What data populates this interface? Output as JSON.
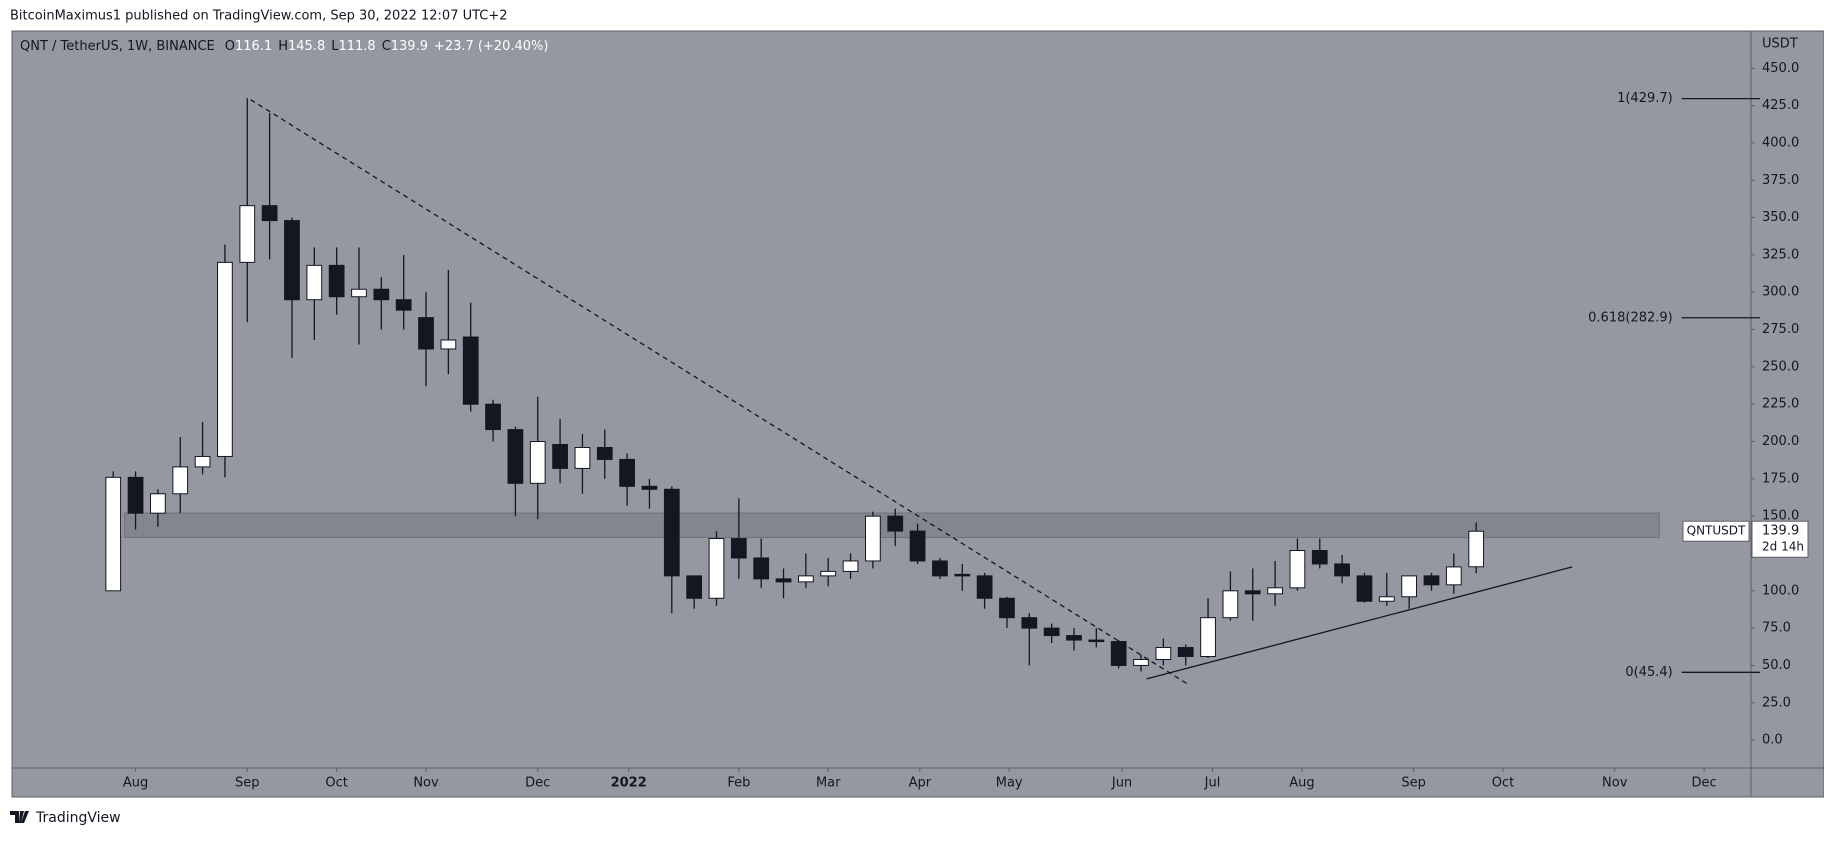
{
  "header": {
    "published": "BitcoinMaximus1 published on TradingView.com, Sep 30, 2022 12:07 UTC+2"
  },
  "footer": {
    "brand": "TradingView"
  },
  "chart_data": {
    "type": "candlestick",
    "symbol": "QNT / TetherUS, 1W, BINANCE",
    "ohlc_letters": [
      "O",
      "H",
      "L",
      "C"
    ],
    "change": "+23.7",
    "change_pct": "(+20.40%)",
    "currency": "USDT",
    "last_label": {
      "symbol": "QNTUSDT",
      "countdown": "2d 14h"
    },
    "open": [
      100,
      176,
      152,
      165,
      183,
      190,
      320,
      358,
      348,
      295,
      318,
      297,
      302,
      295,
      283,
      262,
      270,
      225,
      208,
      172,
      198,
      182,
      196,
      188,
      170,
      168,
      110,
      95,
      135,
      122,
      108,
      106,
      110,
      113,
      120,
      150,
      140,
      120,
      111,
      110,
      95,
      82,
      75,
      70,
      67,
      66,
      50,
      54,
      62,
      56,
      82,
      100,
      98,
      102,
      127,
      118,
      110,
      93,
      96,
      110,
      104,
      116.1
    ],
    "high": [
      180,
      180,
      168,
      203,
      213,
      332,
      430,
      420,
      350,
      330,
      330,
      330,
      310,
      325,
      300,
      315,
      293,
      228,
      210,
      230,
      215,
      205,
      208,
      192,
      175,
      170,
      110,
      140,
      162,
      135,
      115,
      125,
      122,
      125,
      153,
      155,
      145,
      122,
      118,
      112,
      96,
      85,
      78,
      75,
      75,
      67,
      57,
      68,
      64,
      95,
      113,
      115,
      120,
      135,
      135,
      124,
      112,
      112,
      110,
      112,
      125,
      145.8
    ],
    "low": [
      100,
      141,
      143,
      152,
      178,
      176,
      280,
      322,
      256,
      268,
      285,
      265,
      275,
      275,
      237,
      245,
      220,
      200,
      150,
      148,
      172,
      165,
      175,
      157,
      155,
      85,
      88,
      90,
      108,
      102,
      95,
      102,
      103,
      108,
      115,
      130,
      118,
      108,
      100,
      88,
      75,
      50,
      65,
      60,
      62,
      48,
      46,
      50,
      50,
      55,
      80,
      80,
      90,
      100,
      115,
      105,
      92,
      90,
      88,
      100,
      98,
      111.8
    ],
    "close": [
      176,
      152,
      165,
      183,
      190,
      320,
      358,
      348,
      295,
      318,
      297,
      302,
      295,
      288,
      262,
      268,
      225,
      208,
      172,
      200,
      182,
      196,
      188,
      170,
      168,
      110,
      95,
      135,
      122,
      108,
      106,
      110,
      113,
      120,
      150,
      140,
      120,
      110,
      110,
      95,
      82,
      75,
      70,
      67,
      66,
      50,
      54,
      62,
      56,
      82,
      100,
      98,
      102,
      127,
      118,
      110,
      93,
      96,
      110,
      104,
      116,
      139.9
    ],
    "colors": {
      "up": "#ffffff",
      "down": "#131722",
      "background": "#9598a1",
      "zone": "#7c7f88"
    },
    "xlim": [
      -4.53,
      73.3
    ],
    "xticks": [
      {
        "value": 1,
        "label": "Aug"
      },
      {
        "value": 6,
        "label": "Sep"
      },
      {
        "value": 10,
        "label": "Oct"
      },
      {
        "value": 14,
        "label": "Nov"
      },
      {
        "value": 19,
        "label": "Dec"
      },
      {
        "value": 23.07,
        "label": "2022",
        "bold": true
      },
      {
        "value": 28,
        "label": "Feb"
      },
      {
        "value": 32,
        "label": "Mar"
      },
      {
        "value": 36.1,
        "label": "Apr"
      },
      {
        "value": 40.1,
        "label": "May"
      },
      {
        "value": 45.15,
        "label": "Jun"
      },
      {
        "value": 49.2,
        "label": "Jul"
      },
      {
        "value": 53.2,
        "label": "Aug"
      },
      {
        "value": 58.2,
        "label": "Sep"
      },
      {
        "value": 62.2,
        "label": "Oct"
      },
      {
        "value": 67.2,
        "label": "Nov"
      },
      {
        "value": 71.2,
        "label": "Dec"
      }
    ],
    "ylim": [
      -18.7,
      475
    ],
    "yticks": [
      {
        "value": 0,
        "label": "0.0"
      },
      {
        "value": 25,
        "label": "25.0"
      },
      {
        "value": 50,
        "label": "50.0"
      },
      {
        "value": 75,
        "label": "75.0"
      },
      {
        "value": 100,
        "label": "100.0"
      },
      {
        "value": 125,
        "label": "125.0"
      },
      {
        "value": 150,
        "label": "150.0"
      },
      {
        "value": 175,
        "label": "175.0"
      },
      {
        "value": 200,
        "label": "200.0"
      },
      {
        "value": 225,
        "label": "225.0"
      },
      {
        "value": 250,
        "label": "250.0"
      },
      {
        "value": 275,
        "label": "275.0"
      },
      {
        "value": 300,
        "label": "300.0"
      },
      {
        "value": 325,
        "label": "325.0"
      },
      {
        "value": 350,
        "label": "350.0"
      },
      {
        "value": 375,
        "label": "375.0"
      },
      {
        "value": 400,
        "label": "400.0"
      },
      {
        "value": 425,
        "label": "425.0"
      },
      {
        "value": 450,
        "label": "450.0"
      }
    ],
    "fib_levels": [
      {
        "value": 429.7,
        "label": "1(429.7)"
      },
      {
        "value": 282.9,
        "label": "0.618(282.9)"
      },
      {
        "value": 45.4,
        "label": "0(45.4)"
      }
    ],
    "fib_x": [
      70.2,
      73.7
    ],
    "zone": [
      135.7,
      152.1
    ],
    "zone_x": [
      0.5,
      69.2
    ],
    "trendlines": [
      {
        "style": "dashed",
        "points": [
          [
            6.15,
            429
          ],
          [
            48.1,
            37.4
          ]
        ]
      },
      {
        "style": "solid",
        "points": [
          [
            46.25,
            41
          ],
          [
            65.3,
            116
          ]
        ]
      }
    ]
  }
}
